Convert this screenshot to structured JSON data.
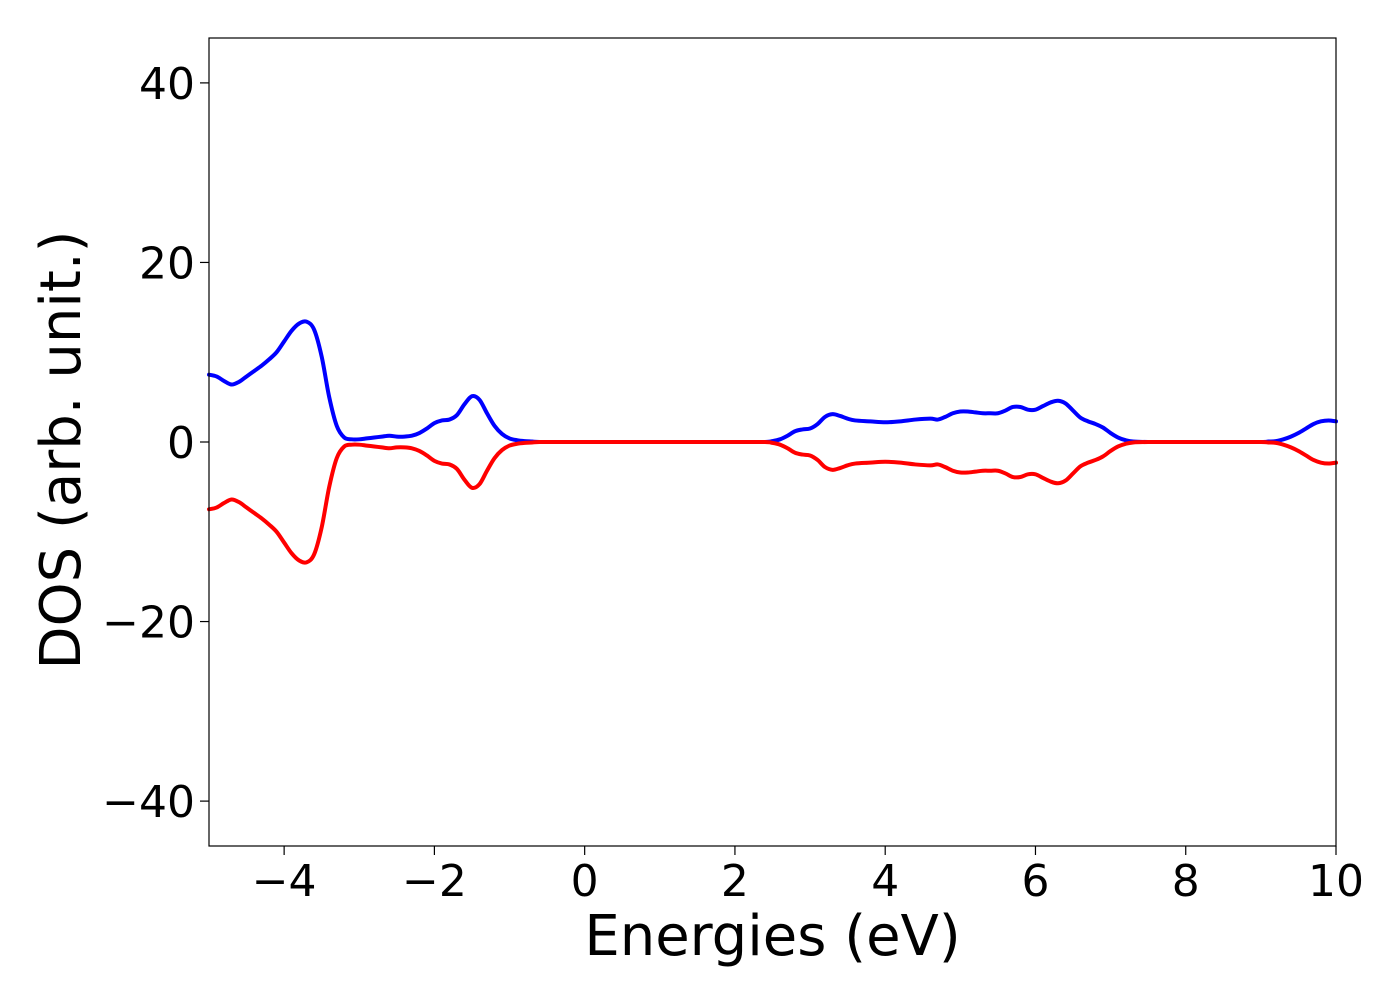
{
  "chart_data": {
    "type": "line",
    "title": "",
    "xlabel": "Energies (eV)",
    "ylabel": "DOS (arb. unit.)",
    "xlim": [
      -5,
      10
    ],
    "ylim": [
      -45,
      45
    ],
    "xticks": [
      -4,
      -2,
      0,
      2,
      4,
      6,
      8,
      10
    ],
    "xtick_labels": [
      "−4",
      "−2",
      "0",
      "2",
      "4",
      "6",
      "8",
      "10"
    ],
    "yticks": [
      -40,
      -20,
      0,
      20,
      40
    ],
    "ytick_labels": [
      "−40",
      "−20",
      "0",
      "20",
      "40"
    ],
    "grid": false,
    "legend": "none",
    "series": [
      {
        "color": "#0000ff",
        "x": [
          -5.0,
          -4.9,
          -4.8,
          -4.7,
          -4.6,
          -4.5,
          -4.4,
          -4.3,
          -4.2,
          -4.1,
          -4.0,
          -3.9,
          -3.8,
          -3.7,
          -3.6,
          -3.5,
          -3.4,
          -3.3,
          -3.2,
          -3.1,
          -3.0,
          -2.9,
          -2.8,
          -2.7,
          -2.6,
          -2.5,
          -2.4,
          -2.3,
          -2.2,
          -2.1,
          -2.0,
          -1.9,
          -1.8,
          -1.7,
          -1.6,
          -1.5,
          -1.4,
          -1.3,
          -1.2,
          -1.1,
          -1.0,
          -0.9,
          -0.8,
          -0.7,
          -0.6,
          -0.4,
          0.0,
          1.0,
          2.0,
          2.4,
          2.5,
          2.6,
          2.7,
          2.8,
          2.9,
          3.0,
          3.1,
          3.2,
          3.3,
          3.4,
          3.5,
          3.6,
          3.8,
          4.0,
          4.2,
          4.4,
          4.6,
          4.7,
          4.8,
          4.9,
          5.0,
          5.1,
          5.2,
          5.3,
          5.4,
          5.5,
          5.6,
          5.7,
          5.8,
          5.9,
          6.0,
          6.1,
          6.2,
          6.3,
          6.4,
          6.5,
          6.6,
          6.7,
          6.8,
          6.9,
          7.0,
          7.1,
          7.2,
          7.3,
          7.5,
          8.0,
          8.5,
          9.0,
          9.1,
          9.2,
          9.3,
          9.4,
          9.5,
          9.6,
          9.7,
          9.8,
          9.9,
          10.0
        ],
        "y": [
          7.5,
          7.3,
          6.8,
          6.4,
          6.7,
          7.3,
          7.9,
          8.5,
          9.2,
          10.0,
          11.2,
          12.4,
          13.2,
          13.4,
          12.5,
          9.5,
          5.0,
          1.8,
          0.5,
          0.3,
          0.3,
          0.4,
          0.5,
          0.6,
          0.7,
          0.6,
          0.6,
          0.7,
          1.0,
          1.5,
          2.1,
          2.4,
          2.5,
          3.0,
          4.2,
          5.1,
          4.7,
          3.2,
          1.8,
          0.9,
          0.4,
          0.2,
          0.1,
          0.05,
          0.0,
          0.0,
          0.0,
          0.0,
          0.0,
          0.0,
          0.1,
          0.3,
          0.7,
          1.2,
          1.4,
          1.5,
          2.0,
          2.8,
          3.1,
          2.9,
          2.6,
          2.4,
          2.3,
          2.2,
          2.3,
          2.5,
          2.6,
          2.5,
          2.8,
          3.2,
          3.4,
          3.4,
          3.3,
          3.2,
          3.2,
          3.2,
          3.5,
          3.9,
          3.9,
          3.6,
          3.6,
          4.0,
          4.4,
          4.6,
          4.3,
          3.5,
          2.7,
          2.3,
          2.0,
          1.6,
          1.0,
          0.5,
          0.2,
          0.05,
          0.0,
          0.0,
          0.0,
          0.0,
          0.05,
          0.1,
          0.3,
          0.6,
          1.0,
          1.5,
          2.0,
          2.3,
          2.4,
          2.3
        ]
      },
      {
        "color": "#ff0000",
        "x": [
          -5.0,
          -4.9,
          -4.8,
          -4.7,
          -4.6,
          -4.5,
          -4.4,
          -4.3,
          -4.2,
          -4.1,
          -4.0,
          -3.9,
          -3.8,
          -3.7,
          -3.6,
          -3.5,
          -3.4,
          -3.3,
          -3.2,
          -3.1,
          -3.0,
          -2.9,
          -2.8,
          -2.7,
          -2.6,
          -2.5,
          -2.4,
          -2.3,
          -2.2,
          -2.1,
          -2.0,
          -1.9,
          -1.8,
          -1.7,
          -1.6,
          -1.5,
          -1.4,
          -1.3,
          -1.2,
          -1.1,
          -1.0,
          -0.9,
          -0.8,
          -0.7,
          -0.6,
          -0.4,
          0.0,
          1.0,
          2.0,
          2.4,
          2.5,
          2.6,
          2.7,
          2.8,
          2.9,
          3.0,
          3.1,
          3.2,
          3.3,
          3.4,
          3.5,
          3.6,
          3.8,
          4.0,
          4.2,
          4.4,
          4.6,
          4.7,
          4.8,
          4.9,
          5.0,
          5.1,
          5.2,
          5.3,
          5.4,
          5.5,
          5.6,
          5.7,
          5.8,
          5.9,
          6.0,
          6.1,
          6.2,
          6.3,
          6.4,
          6.5,
          6.6,
          6.7,
          6.8,
          6.9,
          7.0,
          7.1,
          7.2,
          7.3,
          7.5,
          8.0,
          8.5,
          9.0,
          9.1,
          9.2,
          9.3,
          9.4,
          9.5,
          9.6,
          9.7,
          9.8,
          9.9,
          10.0
        ],
        "y": [
          -7.5,
          -7.3,
          -6.8,
          -6.4,
          -6.7,
          -7.3,
          -7.9,
          -8.5,
          -9.2,
          -10.0,
          -11.2,
          -12.4,
          -13.2,
          -13.4,
          -12.5,
          -9.5,
          -5.0,
          -1.8,
          -0.5,
          -0.3,
          -0.3,
          -0.4,
          -0.5,
          -0.6,
          -0.7,
          -0.6,
          -0.6,
          -0.7,
          -1.0,
          -1.5,
          -2.1,
          -2.4,
          -2.5,
          -3.0,
          -4.2,
          -5.1,
          -4.7,
          -3.2,
          -1.8,
          -0.9,
          -0.4,
          -0.2,
          -0.1,
          -0.05,
          0.0,
          0.0,
          0.0,
          0.0,
          0.0,
          0.0,
          -0.1,
          -0.3,
          -0.7,
          -1.2,
          -1.4,
          -1.5,
          -2.0,
          -2.8,
          -3.1,
          -2.9,
          -2.6,
          -2.4,
          -2.3,
          -2.2,
          -2.3,
          -2.5,
          -2.6,
          -2.5,
          -2.8,
          -3.2,
          -3.4,
          -3.4,
          -3.3,
          -3.2,
          -3.2,
          -3.2,
          -3.5,
          -3.9,
          -3.9,
          -3.6,
          -3.6,
          -4.0,
          -4.4,
          -4.6,
          -4.3,
          -3.5,
          -2.7,
          -2.3,
          -2.0,
          -1.6,
          -1.0,
          -0.5,
          -0.2,
          -0.05,
          0.0,
          0.0,
          0.0,
          0.0,
          -0.05,
          -0.1,
          -0.3,
          -0.6,
          -1.0,
          -1.5,
          -2.0,
          -2.3,
          -2.4,
          -2.3
        ]
      }
    ]
  }
}
